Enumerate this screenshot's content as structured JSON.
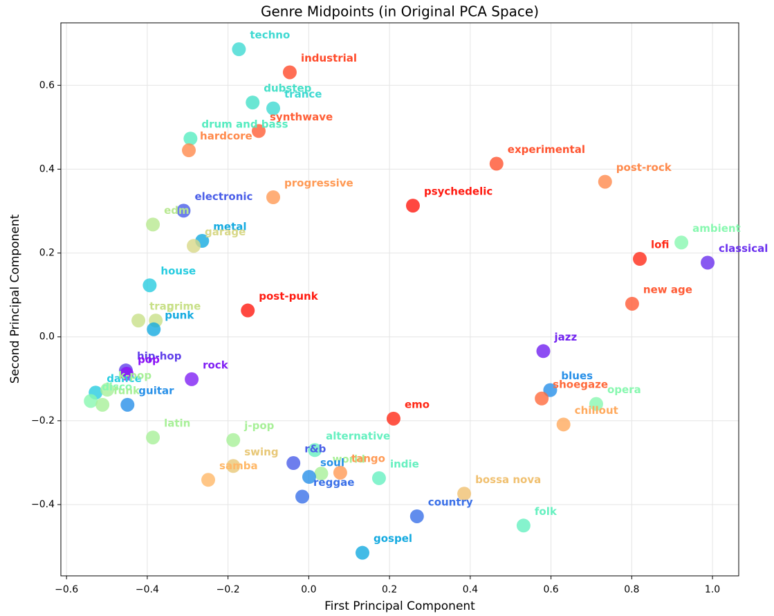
{
  "chart_data": {
    "type": "scatter",
    "title": "Genre Midpoints (in Original PCA Space)",
    "x_label": "First Principal Component",
    "y_label": "Second Principal Component",
    "xlim": [
      -0.614,
      1.065
    ],
    "ylim": [
      -0.57,
      0.749
    ],
    "grid": true,
    "xticks": [
      {
        "value": -0.6,
        "label": "−0.6"
      },
      {
        "value": -0.4,
        "label": "−0.4"
      },
      {
        "value": -0.2,
        "label": "−0.2"
      },
      {
        "value": 0,
        "label": "0.0"
      },
      {
        "value": 0.2,
        "label": "0.2"
      },
      {
        "value": 0.4,
        "label": "0.4"
      },
      {
        "value": 0.6,
        "label": "0.6"
      },
      {
        "value": 0.8,
        "label": "0.8"
      },
      {
        "value": 1.0,
        "label": "1.0"
      }
    ],
    "yticks": [
      {
        "value": -0.4,
        "label": "−0.4"
      },
      {
        "value": -0.2,
        "label": "−0.2"
      },
      {
        "value": 0,
        "label": "0.0"
      },
      {
        "value": 0.2,
        "label": "0.2"
      },
      {
        "value": 0.4,
        "label": "0.4"
      },
      {
        "value": 0.6,
        "label": "0.6"
      }
    ],
    "points": [
      {
        "name": "techno",
        "x": -0.173,
        "y": 0.686,
        "color": "#3fd9d2"
      },
      {
        "name": "industrial",
        "x": -0.047,
        "y": 0.631,
        "color": "#ff4a2a"
      },
      {
        "name": "dubstep",
        "x": -0.139,
        "y": 0.559,
        "color": "#45e0c8"
      },
      {
        "name": "trance",
        "x": -0.088,
        "y": 0.545,
        "color": "#3fd9d2"
      },
      {
        "name": "synthwave",
        "x": -0.124,
        "y": 0.491,
        "color": "#ff5e36"
      },
      {
        "name": "drum and bass",
        "x": -0.293,
        "y": 0.473,
        "color": "#56ecc0"
      },
      {
        "name": "hardcore",
        "x": -0.297,
        "y": 0.445,
        "color": "#ff8a4c"
      },
      {
        "name": "experimental",
        "x": 0.465,
        "y": 0.413,
        "color": "#ff5430"
      },
      {
        "name": "post-rock",
        "x": 0.734,
        "y": 0.37,
        "color": "#ff8a4c"
      },
      {
        "name": "progressive",
        "x": -0.088,
        "y": 0.333,
        "color": "#ff9a55"
      },
      {
        "name": "psychedelic",
        "x": 0.258,
        "y": 0.313,
        "color": "#ff1a10"
      },
      {
        "name": "electronic",
        "x": -0.31,
        "y": 0.301,
        "color": "#4a5ee8"
      },
      {
        "name": "edm",
        "x": -0.386,
        "y": 0.268,
        "color": "#b8e890"
      },
      {
        "name": "metal",
        "x": -0.264,
        "y": 0.229,
        "color": "#14aae0"
      },
      {
        "name": "garage",
        "x": -0.285,
        "y": 0.217,
        "color": "#d8d888"
      },
      {
        "name": "ambient",
        "x": 0.923,
        "y": 0.225,
        "color": "#88f8b0"
      },
      {
        "name": "lofi",
        "x": 0.82,
        "y": 0.186,
        "color": "#ff2a18"
      },
      {
        "name": "classical",
        "x": 0.988,
        "y": 0.177,
        "color": "#6a30ee"
      },
      {
        "name": "house",
        "x": -0.394,
        "y": 0.123,
        "color": "#28cce0"
      },
      {
        "name": "new age",
        "x": 0.801,
        "y": 0.079,
        "color": "#ff5a34"
      },
      {
        "name": "post-punk",
        "x": -0.151,
        "y": 0.063,
        "color": "#ff1a10"
      },
      {
        "name": "trap",
        "x": -0.422,
        "y": 0.039,
        "color": "#c8e088"
      },
      {
        "name": "grime",
        "x": -0.379,
        "y": 0.039,
        "color": "#c8e088"
      },
      {
        "name": "punk",
        "x": -0.384,
        "y": 0.018,
        "color": "#14aae0"
      },
      {
        "name": "jazz",
        "x": 0.581,
        "y": -0.034,
        "color": "#7020f0"
      },
      {
        "name": "hip-hop",
        "x": -0.453,
        "y": -0.08,
        "color": "#6040ea"
      },
      {
        "name": "rock",
        "x": -0.29,
        "y": -0.101,
        "color": "#8020f4"
      },
      {
        "name": "pop",
        "x": -0.451,
        "y": -0.088,
        "color": "#8a10f6"
      },
      {
        "name": "dance",
        "x": -0.528,
        "y": -0.133,
        "color": "#28cce0"
      },
      {
        "name": "k-pop",
        "x": -0.499,
        "y": -0.126,
        "color": "#a8f098"
      },
      {
        "name": "disco",
        "x": -0.54,
        "y": -0.153,
        "color": "#88f8b0"
      },
      {
        "name": "funk",
        "x": -0.511,
        "y": -0.162,
        "color": "#a8f098"
      },
      {
        "name": "guitar",
        "x": -0.449,
        "y": -0.162,
        "color": "#2890e8"
      },
      {
        "name": "blues",
        "x": 0.598,
        "y": -0.127,
        "color": "#2890e8"
      },
      {
        "name": "shoegaze",
        "x": 0.577,
        "y": -0.147,
        "color": "#ff6a3c"
      },
      {
        "name": "opera",
        "x": 0.712,
        "y": -0.16,
        "color": "#88f8b0"
      },
      {
        "name": "chillout",
        "x": 0.631,
        "y": -0.209,
        "color": "#ffaa5e"
      },
      {
        "name": "emo",
        "x": 0.21,
        "y": -0.195,
        "color": "#ff2a18"
      },
      {
        "name": "latin",
        "x": -0.386,
        "y": -0.24,
        "color": "#a8f098"
      },
      {
        "name": "j-pop",
        "x": -0.187,
        "y": -0.246,
        "color": "#a8f098"
      },
      {
        "name": "alternative",
        "x": 0.015,
        "y": -0.27,
        "color": "#66f0c0"
      },
      {
        "name": "r&b",
        "x": -0.038,
        "y": -0.301,
        "color": "#4a5ee8"
      },
      {
        "name": "swing",
        "x": -0.187,
        "y": -0.308,
        "color": "#e8c878"
      },
      {
        "name": "samba",
        "x": -0.249,
        "y": -0.341,
        "color": "#ffb868"
      },
      {
        "name": "world",
        "x": 0.031,
        "y": -0.326,
        "color": "#a8f098"
      },
      {
        "name": "tango",
        "x": 0.078,
        "y": -0.324,
        "color": "#ff9a55"
      },
      {
        "name": "soul",
        "x": 0.001,
        "y": -0.334,
        "color": "#2890e8"
      },
      {
        "name": "indie",
        "x": 0.174,
        "y": -0.337,
        "color": "#66f0c0"
      },
      {
        "name": "reggae",
        "x": -0.016,
        "y": -0.381,
        "color": "#3a70e8"
      },
      {
        "name": "bossa nova",
        "x": 0.385,
        "y": -0.374,
        "color": "#f0c070"
      },
      {
        "name": "country",
        "x": 0.268,
        "y": -0.428,
        "color": "#3a70e8"
      },
      {
        "name": "folk",
        "x": 0.532,
        "y": -0.45,
        "color": "#66f0c0"
      },
      {
        "name": "gospel",
        "x": 0.133,
        "y": -0.515,
        "color": "#14aae0"
      }
    ]
  }
}
